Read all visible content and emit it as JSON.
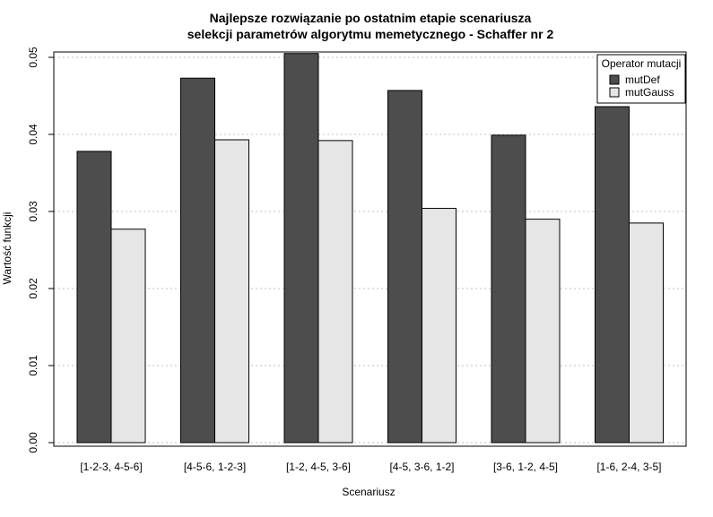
{
  "chart_data": {
    "type": "bar",
    "title": "Najlepsze rozwiązanie po ostatnim etapie scenariusza",
    "subtitle": "selekcji parametrów algorytmu memetycznego - Schaffer nr 2",
    "xlabel": "Scenariusz",
    "ylabel": "Wartość funkcji",
    "ylim": [
      0,
      0.05
    ],
    "yticks": [
      0,
      0.01,
      0.02,
      0.03,
      0.04,
      0.05
    ],
    "ytick_labels": [
      "0.00",
      "0.01",
      "0.02",
      "0.03",
      "0.04",
      "0.05"
    ],
    "grid": "horizontal dotted",
    "legend_position": "top-right",
    "legend_title": "Operator mutacji",
    "categories": [
      "[1-2-3, 4-5-6]",
      "[4-5-6, 1-2-3]",
      "[1-2, 4-5, 3-6]",
      "[4-5, 3-6, 1-2]",
      "[3-6, 1-2, 4-5]",
      "[1-6, 2-4, 3-5]"
    ],
    "series": [
      {
        "name": "mutDef",
        "color": "#4d4d4d",
        "values": [
          0.0378,
          0.0473,
          0.0505,
          0.0457,
          0.0399,
          0.0436
        ]
      },
      {
        "name": "mutGauss",
        "color": "#e6e6e6",
        "values": [
          0.0277,
          0.0393,
          0.0392,
          0.0304,
          0.029,
          0.0285
        ]
      }
    ]
  }
}
